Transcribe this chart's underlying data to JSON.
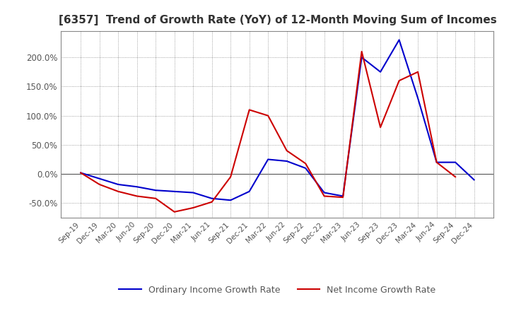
{
  "title": "[6357]  Trend of Growth Rate (YoY) of 12-Month Moving Sum of Incomes",
  "title_fontsize": 11,
  "legend_labels": [
    "Ordinary Income Growth Rate",
    "Net Income Growth Rate"
  ],
  "legend_colors": [
    "#0000cc",
    "#cc0000"
  ],
  "x_labels": [
    "Sep-19",
    "Dec-19",
    "Mar-20",
    "Jun-20",
    "Sep-20",
    "Dec-20",
    "Mar-21",
    "Jun-21",
    "Sep-21",
    "Dec-21",
    "Mar-22",
    "Jun-22",
    "Sep-22",
    "Dec-22",
    "Mar-23",
    "Jun-23",
    "Sep-23",
    "Dec-23",
    "Mar-24",
    "Jun-24",
    "Sep-24",
    "Dec-24"
  ],
  "ylim": [
    -75,
    245
  ],
  "yticks": [
    -50.0,
    0.0,
    50.0,
    100.0,
    150.0,
    200.0
  ],
  "ordinary_income": [
    2.0,
    -8.0,
    -18.0,
    -22.0,
    -28.0,
    -30.0,
    -32.0,
    -42.0,
    -45.0,
    -30.0,
    25.0,
    22.0,
    10.0,
    -32.0,
    -38.0,
    200.0,
    175.0,
    230.0,
    130.0,
    20.0,
    20.0,
    -10.0
  ],
  "net_income": [
    2.0,
    -18.0,
    -30.0,
    -38.0,
    -42.0,
    -65.0,
    -58.0,
    -48.0,
    -5.0,
    110.0,
    100.0,
    40.0,
    18.0,
    -38.0,
    -40.0,
    210.0,
    80.0,
    160.0,
    175.0,
    20.0,
    -5.0,
    null
  ]
}
